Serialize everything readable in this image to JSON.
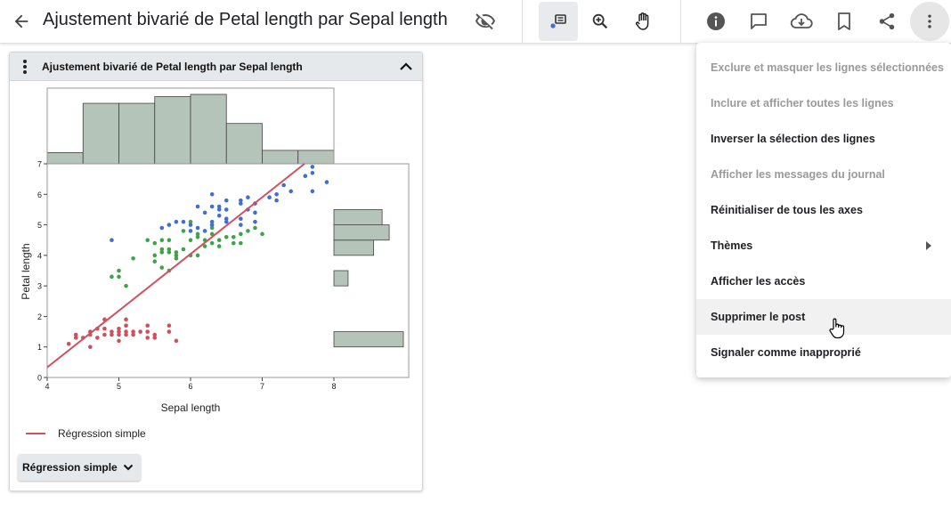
{
  "header": {
    "title": "Ajustement bivarié de Petal length par Sepal length",
    "icons": [
      "back-arrow-icon",
      "hide-icon",
      "annotate-icon",
      "zoom-icon",
      "pan-hand-icon",
      "info-icon",
      "comment-icon",
      "cloud-download-icon",
      "bookmark-icon",
      "share-icon",
      "more-vert-icon"
    ]
  },
  "card": {
    "title": "Ajustement bivarié de Petal length par Sepal length",
    "legend_label": "Régression simple",
    "dropdown_label": "Régression simple"
  },
  "colors": {
    "regression": "#d0505e",
    "setosa": "#d0505e",
    "versicolor": "#3ea44a",
    "virginica": "#3f6fd1",
    "histogram": "#b5c4b8"
  },
  "chart_data": {
    "type": "scatter",
    "xlabel": "Sepal length",
    "ylabel": "Petal length",
    "xlim": [
      4,
      8
    ],
    "ylim": [
      0,
      7
    ],
    "xticks": [
      4,
      5,
      6,
      7,
      8
    ],
    "yticks": [
      0,
      1,
      2,
      3,
      4,
      5,
      6,
      7
    ],
    "regression_line": {
      "name": "Régression simple",
      "slope": 1.858,
      "intercept": -7.101
    },
    "series": [
      {
        "color": "#d0505e",
        "points": [
          [
            4.3,
            1.1
          ],
          [
            4.4,
            1.3
          ],
          [
            4.4,
            1.4
          ],
          [
            4.5,
            1.3
          ],
          [
            4.6,
            1.0
          ],
          [
            4.6,
            1.4
          ],
          [
            4.6,
            1.5
          ],
          [
            4.7,
            1.3
          ],
          [
            4.7,
            1.6
          ],
          [
            4.8,
            1.4
          ],
          [
            4.8,
            1.6
          ],
          [
            4.8,
            1.9
          ],
          [
            4.9,
            1.4
          ],
          [
            4.9,
            1.5
          ],
          [
            5.0,
            1.2
          ],
          [
            5.0,
            1.4
          ],
          [
            5.0,
            1.6
          ],
          [
            5.0,
            1.5
          ],
          [
            5.1,
            1.4
          ],
          [
            5.1,
            1.5
          ],
          [
            5.1,
            1.7
          ],
          [
            5.1,
            1.9
          ],
          [
            5.2,
            1.4
          ],
          [
            5.2,
            1.5
          ],
          [
            5.3,
            1.5
          ],
          [
            5.4,
            1.3
          ],
          [
            5.4,
            1.5
          ],
          [
            5.4,
            1.7
          ],
          [
            5.5,
            1.3
          ],
          [
            5.5,
            1.4
          ],
          [
            5.7,
            1.5
          ],
          [
            5.7,
            1.7
          ],
          [
            5.8,
            1.2
          ]
        ]
      },
      {
        "color": "#3ea44a",
        "points": [
          [
            4.9,
            3.3
          ],
          [
            5.0,
            3.3
          ],
          [
            5.0,
            3.5
          ],
          [
            5.1,
            3.0
          ],
          [
            5.2,
            3.9
          ],
          [
            5.4,
            4.5
          ],
          [
            5.5,
            4.0
          ],
          [
            5.5,
            3.8
          ],
          [
            5.5,
            4.4
          ],
          [
            5.6,
            4.1
          ],
          [
            5.6,
            3.6
          ],
          [
            5.6,
            4.5
          ],
          [
            5.6,
            4.2
          ],
          [
            5.7,
            3.5
          ],
          [
            5.7,
            4.1
          ],
          [
            5.7,
            4.2
          ],
          [
            5.7,
            4.5
          ],
          [
            5.8,
            3.9
          ],
          [
            5.8,
            4.1
          ],
          [
            5.8,
            4.0
          ],
          [
            5.9,
            4.2
          ],
          [
            5.9,
            4.8
          ],
          [
            6.0,
            4.0
          ],
          [
            6.0,
            4.5
          ],
          [
            6.0,
            5.1
          ],
          [
            6.1,
            4.0
          ],
          [
            6.1,
            4.7
          ],
          [
            6.1,
            4.6
          ],
          [
            6.2,
            4.3
          ],
          [
            6.2,
            4.5
          ],
          [
            6.3,
            4.7
          ],
          [
            6.3,
            4.9
          ],
          [
            6.3,
            4.4
          ],
          [
            6.4,
            4.3
          ],
          [
            6.4,
            4.5
          ],
          [
            6.5,
            4.6
          ],
          [
            6.6,
            4.4
          ],
          [
            6.6,
            4.6
          ],
          [
            6.7,
            4.4
          ],
          [
            6.7,
            4.7
          ],
          [
            6.8,
            4.8
          ],
          [
            6.9,
            4.9
          ],
          [
            7.0,
            4.7
          ]
        ]
      },
      {
        "color": "#3f6fd1",
        "points": [
          [
            4.9,
            4.5
          ],
          [
            5.6,
            4.9
          ],
          [
            5.7,
            5.0
          ],
          [
            5.8,
            5.1
          ],
          [
            5.9,
            5.1
          ],
          [
            6.0,
            4.8
          ],
          [
            6.0,
            5.0
          ],
          [
            6.1,
            4.9
          ],
          [
            6.1,
            5.6
          ],
          [
            6.2,
            4.8
          ],
          [
            6.2,
            5.4
          ],
          [
            6.3,
            5.0
          ],
          [
            6.3,
            5.1
          ],
          [
            6.3,
            5.6
          ],
          [
            6.3,
            6.0
          ],
          [
            6.4,
            5.3
          ],
          [
            6.4,
            5.5
          ],
          [
            6.4,
            5.6
          ],
          [
            6.5,
            5.1
          ],
          [
            6.5,
            5.2
          ],
          [
            6.5,
            5.5
          ],
          [
            6.5,
            5.8
          ],
          [
            6.7,
            5.0
          ],
          [
            6.7,
            5.2
          ],
          [
            6.7,
            5.7
          ],
          [
            6.7,
            5.8
          ],
          [
            6.8,
            5.5
          ],
          [
            6.8,
            5.9
          ],
          [
            6.9,
            5.1
          ],
          [
            6.9,
            5.4
          ],
          [
            6.9,
            5.7
          ],
          [
            7.1,
            5.9
          ],
          [
            7.2,
            5.8
          ],
          [
            7.2,
            6.0
          ],
          [
            7.3,
            6.3
          ],
          [
            7.4,
            6.1
          ],
          [
            7.6,
            6.6
          ],
          [
            7.7,
            6.7
          ],
          [
            7.7,
            6.9
          ],
          [
            7.7,
            6.1
          ],
          [
            7.9,
            6.4
          ]
        ]
      }
    ],
    "histogram_x": {
      "bins": [
        [
          4.0,
          4.5,
          5
        ],
        [
          4.5,
          5.0,
          27
        ],
        [
          5.0,
          5.5,
          27
        ],
        [
          5.5,
          6.0,
          30
        ],
        [
          6.0,
          6.5,
          31
        ],
        [
          6.5,
          7.0,
          18
        ],
        [
          7.0,
          7.5,
          6
        ],
        [
          7.5,
          8.0,
          6
        ]
      ]
    },
    "histogram_y": {
      "bins": [
        [
          1.0,
          1.5,
          49
        ],
        [
          3.0,
          3.5,
          10
        ],
        [
          3.5,
          4.0,
          0
        ],
        [
          4.0,
          4.5,
          28
        ],
        [
          4.5,
          5.0,
          39
        ],
        [
          5.0,
          5.5,
          34
        ],
        [
          5.5,
          6.0,
          0
        ]
      ]
    }
  },
  "menu": {
    "items": [
      {
        "label": "Exclure et masquer les lignes sélectionnées",
        "disabled": true
      },
      {
        "label": "Inclure et afficher toutes les lignes",
        "disabled": true
      },
      {
        "label": "Inverser la sélection des lignes",
        "disabled": false
      },
      {
        "label": "Afficher les messages du journal",
        "disabled": true
      },
      {
        "label": "Réinitialiser de tous les axes",
        "disabled": false
      },
      {
        "label": "Thèmes",
        "disabled": false,
        "submenu": true
      },
      {
        "label": "Afficher les accès",
        "disabled": false
      },
      {
        "label": "Supprimer le post",
        "disabled": false,
        "hovered": true
      },
      {
        "label": "Signaler comme inapproprié",
        "disabled": false
      }
    ]
  }
}
